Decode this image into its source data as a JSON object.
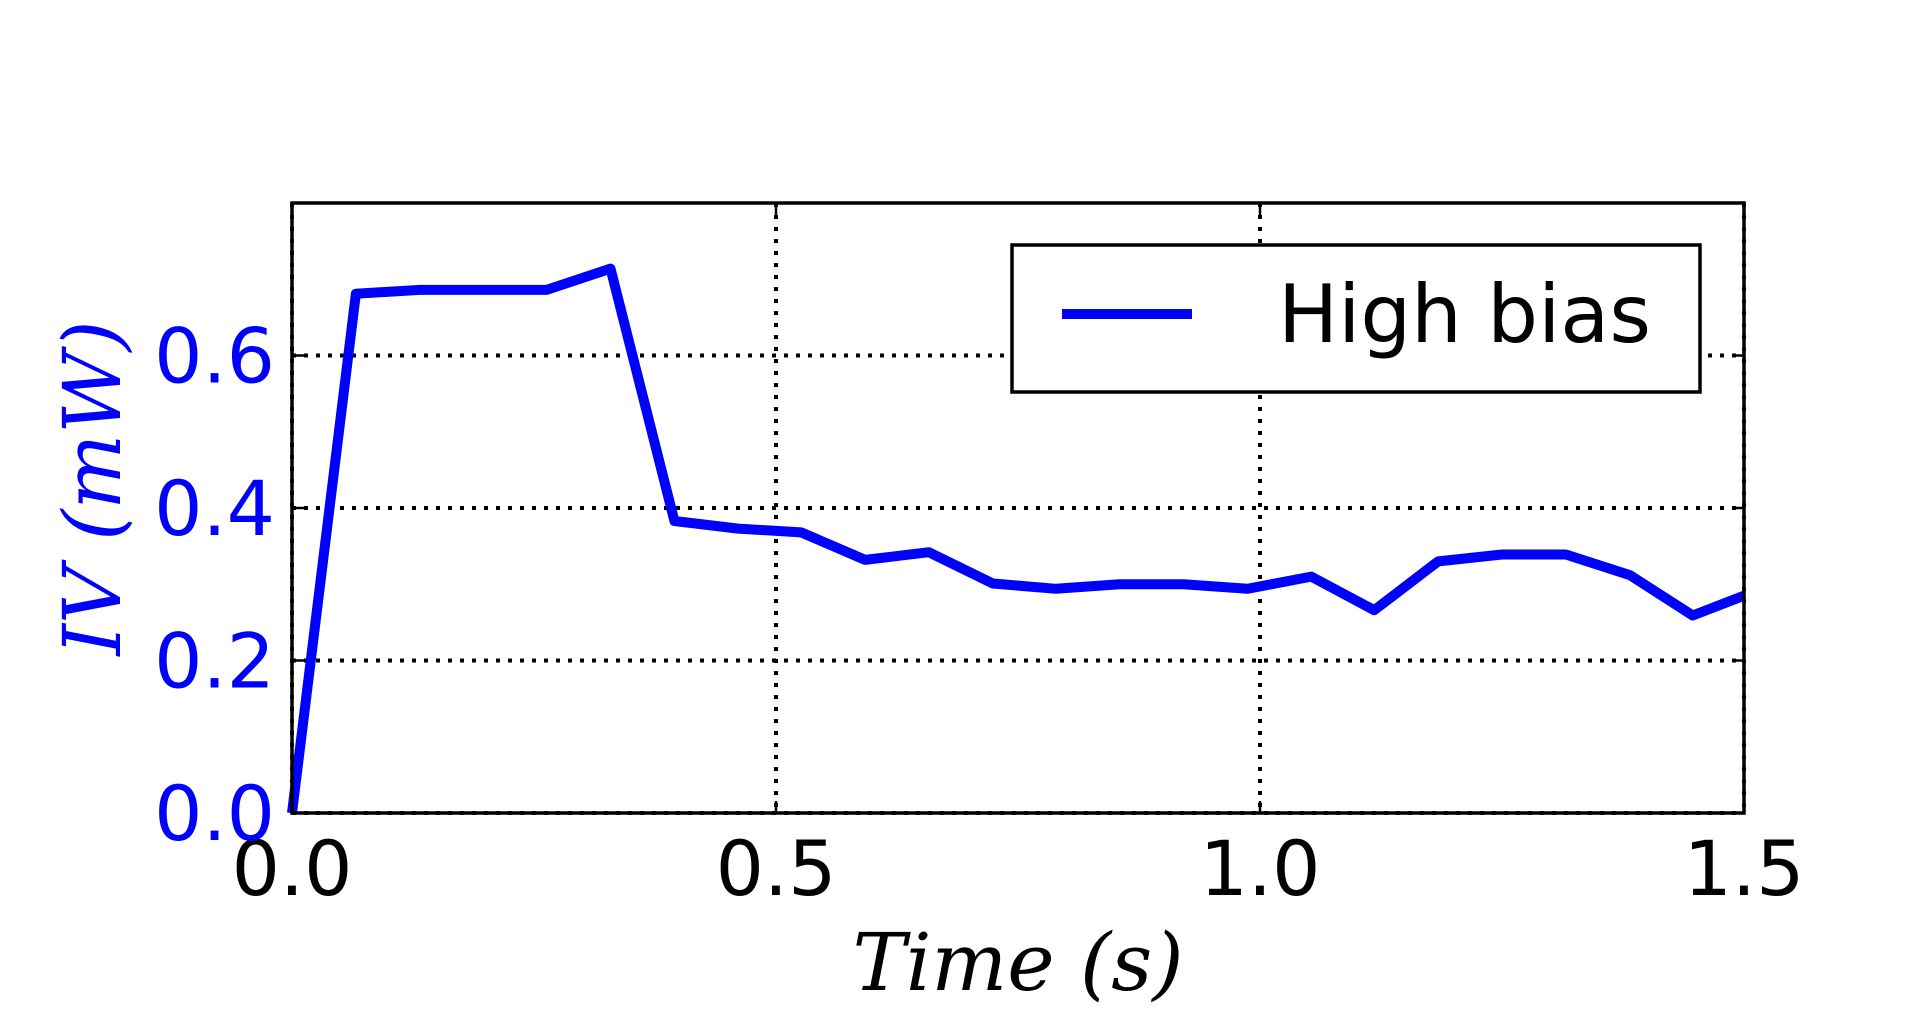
{
  "chart_data": {
    "type": "line",
    "title": "",
    "xlabel": "Time (s)",
    "ylabel": "IV (mW)",
    "xlim": [
      0.0,
      1.5
    ],
    "ylim": [
      0.0,
      0.8
    ],
    "x_ticks": [
      0.0,
      0.5,
      1.0,
      1.5
    ],
    "x_tick_labels": [
      "0.0",
      "0.5",
      "1.0",
      "1.5"
    ],
    "y_ticks": [
      0.0,
      0.2,
      0.4,
      0.6
    ],
    "y_tick_labels": [
      "0.0",
      "0.2",
      "0.4",
      "0.6"
    ],
    "grid": true,
    "legend_position": "top-right",
    "colors": {
      "series": "#0000ff",
      "ylabel": "#0000ff",
      "axis": "#000000"
    },
    "series": [
      {
        "name": "High bias",
        "x": [
          0.0,
          0.066,
          0.132,
          0.197,
          0.263,
          0.329,
          0.395,
          0.461,
          0.526,
          0.592,
          0.658,
          0.724,
          0.789,
          0.855,
          0.921,
          0.987,
          1.053,
          1.118,
          1.184,
          1.25,
          1.316,
          1.382,
          1.447,
          1.5
        ],
        "values": [
          0.0,
          0.681,
          0.686,
          0.686,
          0.686,
          0.714,
          0.383,
          0.373,
          0.368,
          0.332,
          0.342,
          0.301,
          0.294,
          0.3,
          0.3,
          0.294,
          0.31,
          0.266,
          0.33,
          0.339,
          0.339,
          0.312,
          0.259,
          0.285
        ]
      }
    ]
  }
}
